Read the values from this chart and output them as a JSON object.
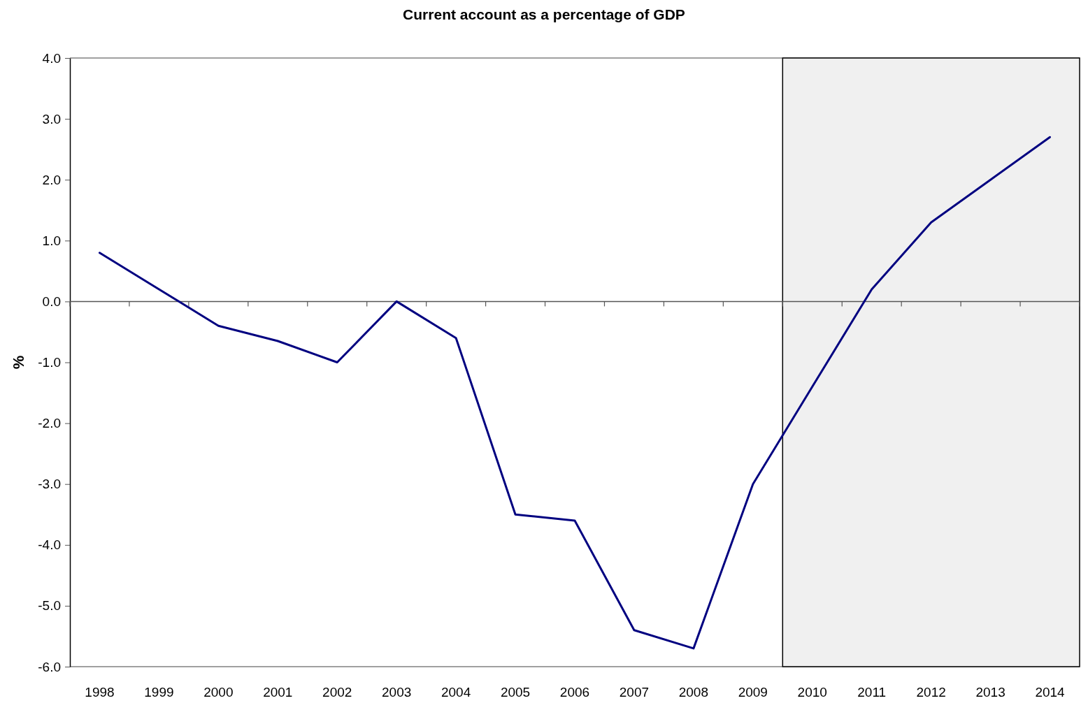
{
  "chart_data": {
    "type": "line",
    "title": "Current account as a percentage of GDP",
    "ylabel": "%",
    "categories": [
      "1998",
      "1999",
      "2000",
      "2001",
      "2002",
      "2003",
      "2004",
      "2005",
      "2006",
      "2007",
      "2008",
      "2009",
      "2010",
      "2011",
      "2012",
      "2013",
      "2014"
    ],
    "series": [
      {
        "color": "#000080",
        "values": [
          0.8,
          0.2,
          -0.4,
          -0.65,
          -1.0,
          0.0,
          -0.6,
          -3.5,
          -3.6,
          -5.4,
          -5.7,
          -3.0,
          -1.4,
          0.2,
          1.3,
          2.0,
          2.7
        ]
      }
    ],
    "ylim": [
      -6,
      4
    ],
    "yticks": [
      {
        "value": -6,
        "label": "-6.0"
      },
      {
        "value": -5,
        "label": "-5.0"
      },
      {
        "value": -4,
        "label": "-4.0"
      },
      {
        "value": -3,
        "label": "-3.0"
      },
      {
        "value": -2,
        "label": "-2.0"
      },
      {
        "value": -1,
        "label": "-1.0"
      },
      {
        "value": 0,
        "label": "0.0"
      },
      {
        "value": 1,
        "label": "1.0"
      },
      {
        "value": 2,
        "label": "2.0"
      },
      {
        "value": 3,
        "label": "3.0"
      },
      {
        "value": 4,
        "label": "4.0"
      }
    ],
    "line_style": "solid",
    "bands": [
      {
        "axis": "x",
        "from": "2010",
        "to": "2014",
        "color": "#f0f0f0"
      }
    ]
  }
}
